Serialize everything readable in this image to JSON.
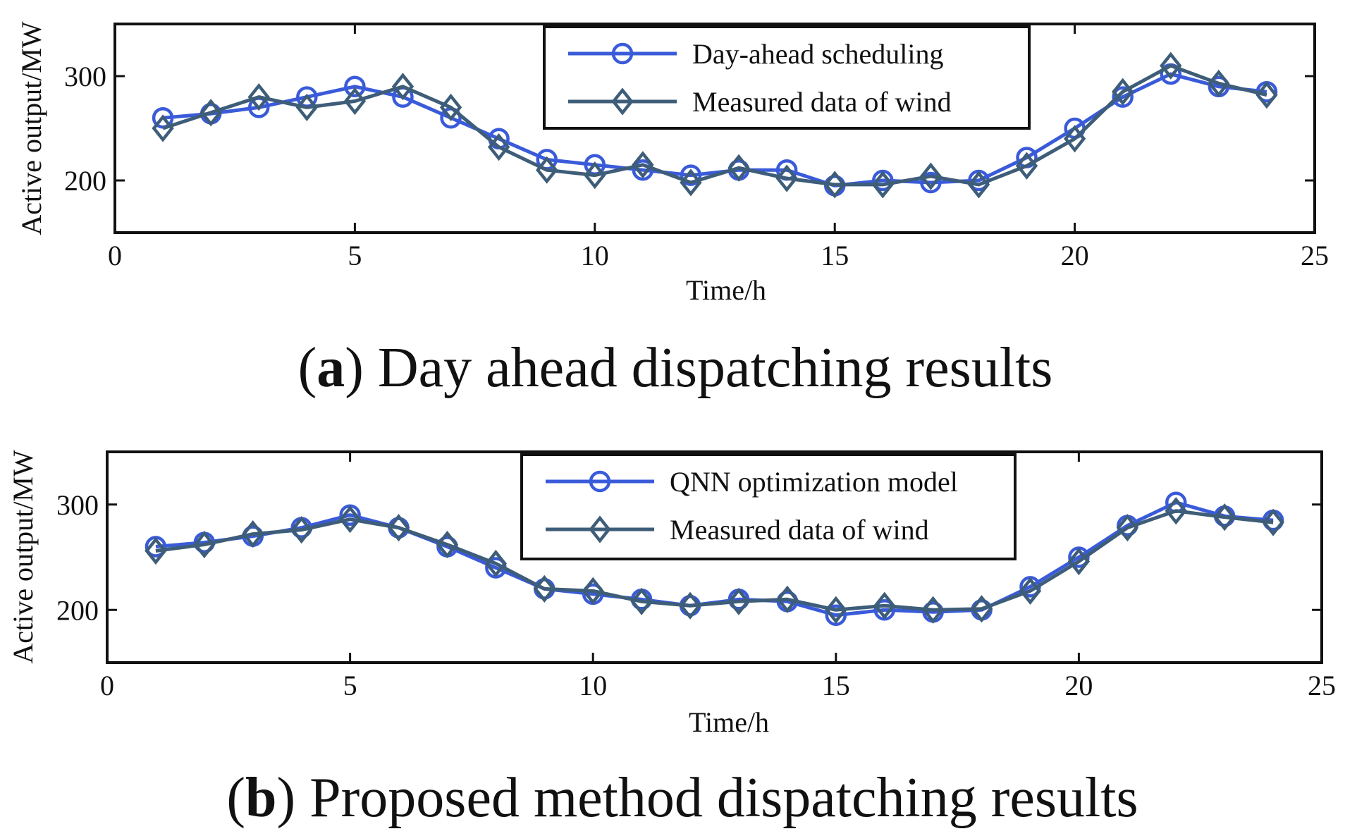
{
  "chart_data": [
    {
      "type": "line",
      "caption_letter": "a",
      "caption_open": "(",
      "caption_close": ")",
      "caption_text": " Day ahead dispatching results",
      "xlabel": "Time/h",
      "ylabel": "Active output/MW",
      "xlim": [
        0,
        25
      ],
      "ylim": [
        150,
        350
      ],
      "xticks": [
        0,
        5,
        10,
        15,
        20,
        25
      ],
      "yticks": [
        200,
        300
      ],
      "grid": false,
      "legend_position": "top-right",
      "x": [
        1,
        2,
        3,
        4,
        5,
        6,
        7,
        8,
        9,
        10,
        11,
        12,
        13,
        14,
        15,
        16,
        17,
        18,
        19,
        20,
        21,
        22,
        23,
        24
      ],
      "series": [
        {
          "name": "Day-ahead scheduling",
          "marker": "circle",
          "color": "#3a5bd9",
          "values": [
            260,
            264,
            270,
            280,
            290,
            280,
            260,
            240,
            220,
            215,
            210,
            205,
            210,
            210,
            195,
            200,
            198,
            200,
            222,
            250,
            280,
            302,
            290,
            285
          ]
        },
        {
          "name": "Measured data of wind",
          "marker": "diamond",
          "color": "#3e5d78",
          "values": [
            250,
            265,
            280,
            270,
            276,
            290,
            270,
            232,
            210,
            205,
            215,
            198,
            212,
            202,
            196,
            196,
            204,
            196,
            214,
            240,
            285,
            310,
            293,
            282
          ]
        }
      ]
    },
    {
      "type": "line",
      "caption_letter": "b",
      "caption_open": "(",
      "caption_close": ")",
      "caption_text": " Proposed method dispatching results",
      "xlabel": "Time/h",
      "ylabel": "Active output/MW",
      "xlim": [
        0,
        25
      ],
      "ylim": [
        150,
        350
      ],
      "xticks": [
        0,
        5,
        10,
        15,
        20,
        25
      ],
      "yticks": [
        200,
        300
      ],
      "grid": false,
      "legend_position": "top-right",
      "x": [
        1,
        2,
        3,
        4,
        5,
        6,
        7,
        8,
        9,
        10,
        11,
        12,
        13,
        14,
        15,
        16,
        17,
        18,
        19,
        20,
        21,
        22,
        23,
        24
      ],
      "series": [
        {
          "name": "QNN optimization model",
          "marker": "circle",
          "color": "#3a5bd9",
          "values": [
            260,
            264,
            270,
            278,
            290,
            278,
            260,
            240,
            220,
            215,
            210,
            204,
            210,
            208,
            195,
            200,
            198,
            200,
            222,
            250,
            280,
            302,
            289,
            285
          ]
        },
        {
          "name": "Measured data of wind",
          "marker": "diamond",
          "color": "#3e5d78",
          "values": [
            256,
            262,
            272,
            276,
            286,
            278,
            262,
            244,
            220,
            218,
            208,
            204,
            208,
            210,
            200,
            204,
            200,
            201,
            218,
            246,
            278,
            294,
            288,
            283
          ]
        }
      ]
    }
  ]
}
